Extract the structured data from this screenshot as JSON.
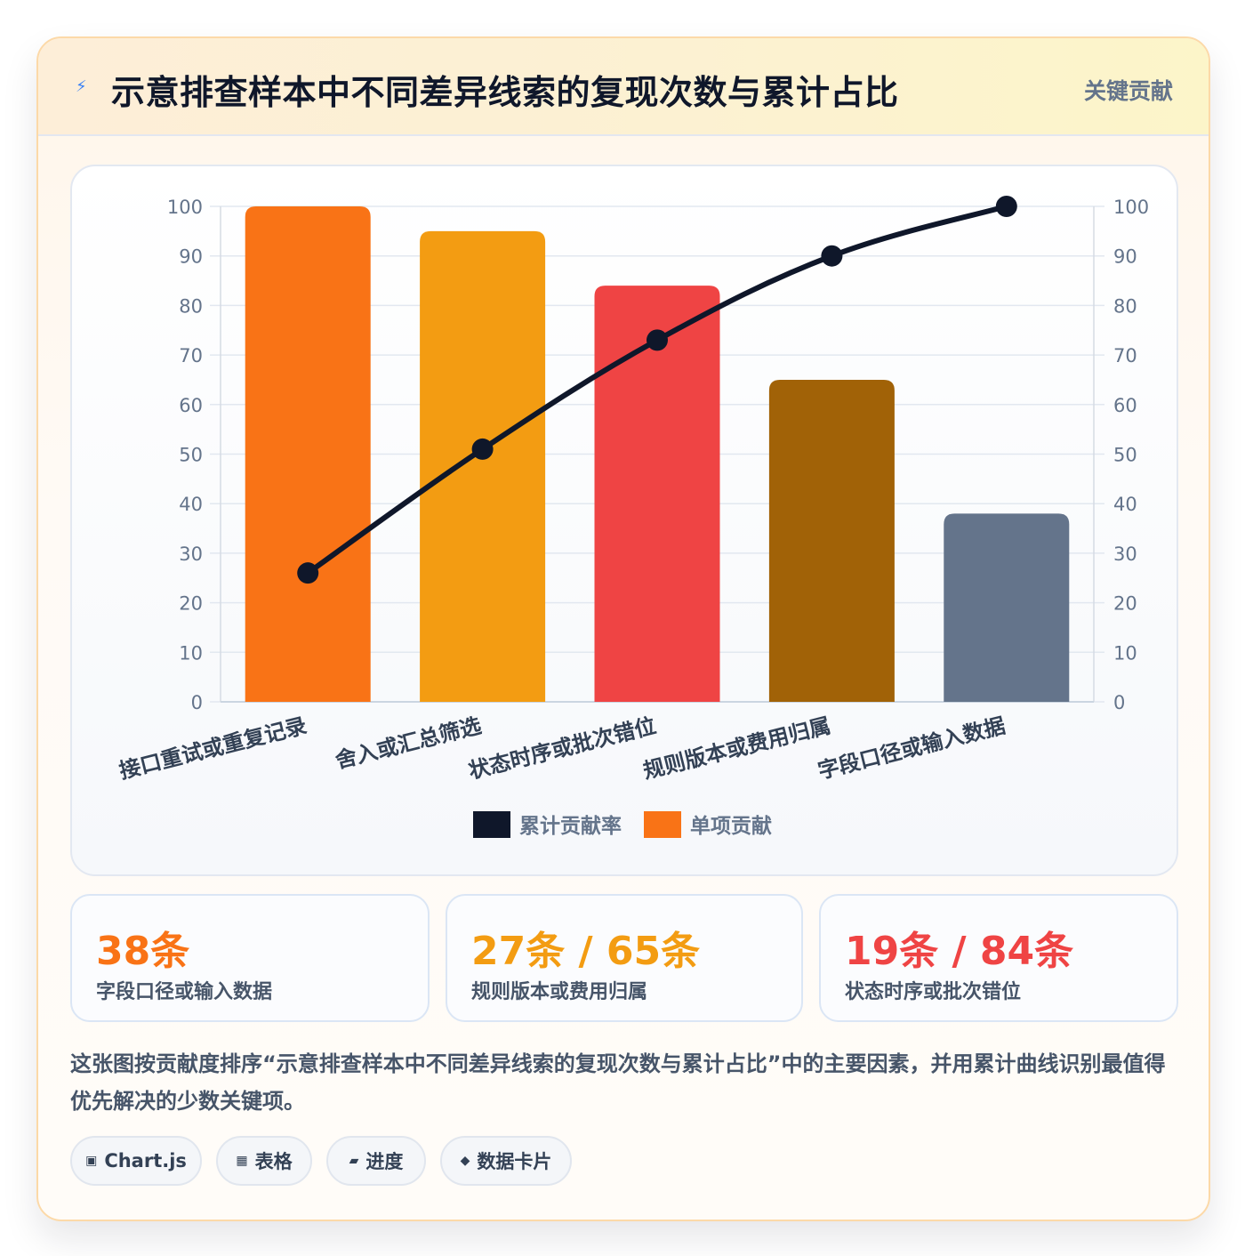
{
  "header": {
    "title": "示意排查样本中不同差异线索的复现次数与累计占比",
    "badge": "关键贡献",
    "icon": "lightning-icon"
  },
  "chart_data": {
    "type": "bar",
    "categories": [
      "接口重试或重复记录",
      "舍入或汇总筛选",
      "状态时序或批次错位",
      "规则版本或费用归属",
      "字段口径或输入数据"
    ],
    "series": [
      {
        "name": "单项贡献",
        "type": "bar",
        "values": [
          100,
          95,
          84,
          65,
          38
        ],
        "colors": [
          "#f97316",
          "#f39c12",
          "#ef4444",
          "#a16207",
          "#64748b"
        ]
      },
      {
        "name": "累计贡献率",
        "type": "line",
        "values": [
          26,
          51,
          73,
          90,
          100
        ],
        "color": "#0f172a"
      }
    ],
    "ylim": [
      0,
      100
    ],
    "y2lim": [
      0,
      100
    ],
    "yticks": [
      0,
      10,
      20,
      30,
      40,
      50,
      60,
      70,
      80,
      90,
      100
    ],
    "legend": [
      {
        "label": "累计贡献率",
        "color": "#0f172a"
      },
      {
        "label": "单项贡献",
        "color": "#f97316"
      }
    ],
    "legend_position": "bottom",
    "grid": true
  },
  "stats": [
    {
      "value": "38条",
      "label": "字段口径或输入数据",
      "color": "#f97316"
    },
    {
      "value": "27条 / 65条",
      "label": "规则版本或费用归属",
      "color": "#f39c12"
    },
    {
      "value": "19条 / 84条",
      "label": "状态时序或批次错位",
      "color": "#ef4444"
    }
  ],
  "description": "这张图按贡献度排序“示意排查样本中不同差异线索的复现次数与累计占比”中的主要因素，并用累计曲线识别最值得优先解决的少数关键项。",
  "tags": [
    {
      "icon": "chip-icon",
      "glyph": "▣",
      "label": "Chart.js"
    },
    {
      "icon": "table-icon",
      "glyph": "▦",
      "label": "表格"
    },
    {
      "icon": "progress-icon",
      "glyph": "▰",
      "label": "进度"
    },
    {
      "icon": "diamond-icon",
      "glyph": "◆",
      "label": "数据卡片"
    }
  ]
}
